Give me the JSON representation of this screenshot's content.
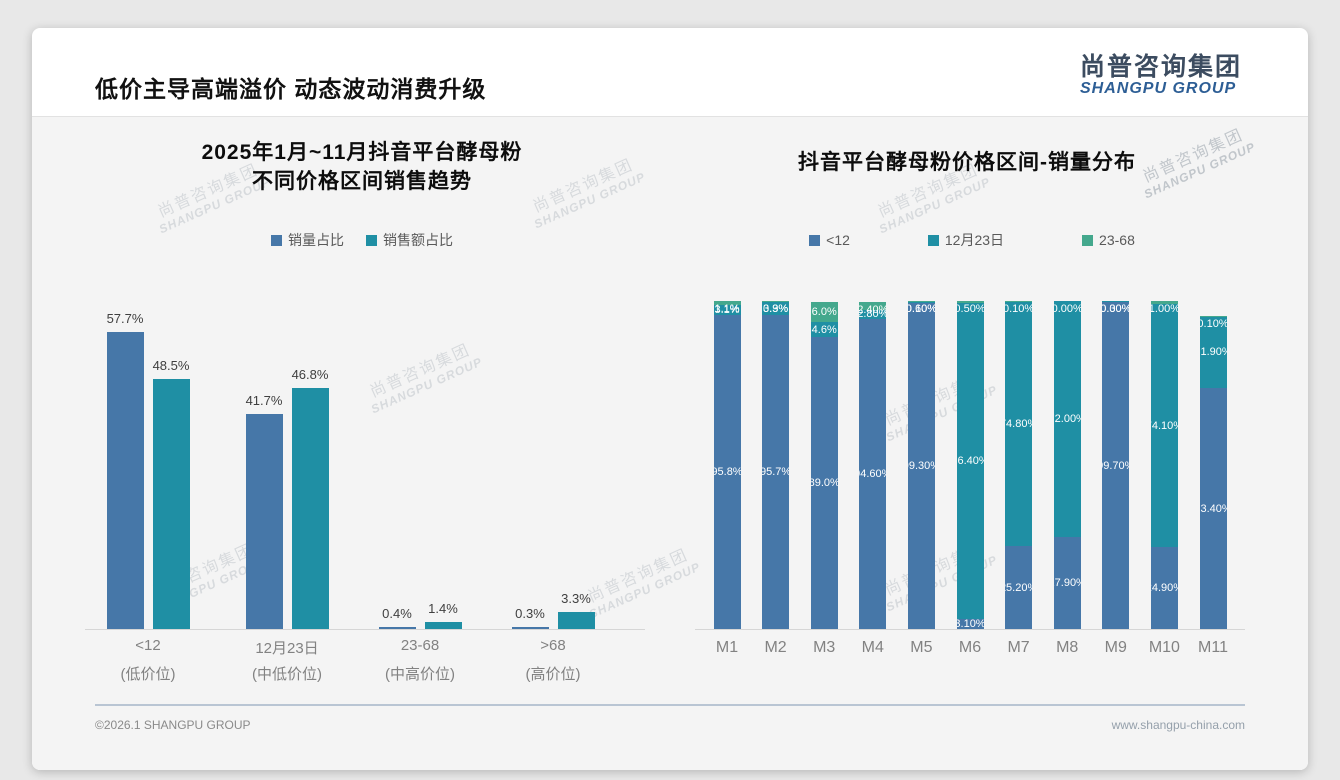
{
  "header": {
    "title": "低价主导高端溢价 动态波动消费升级",
    "logo_cn": "尚普咨询集团",
    "logo_en": "SHANGPU GROUP"
  },
  "watermark": {
    "line1": "尚普咨询集团",
    "line2": "SHANGPU GROUP"
  },
  "footer": {
    "copyright": "©2026.1 SHANGPU GROUP",
    "website": "www.shangpu-china.com"
  },
  "colors": {
    "blue": "#4677a8",
    "teal": "#1f8fa4",
    "green": "#44a88d",
    "axis": "#d6d6d6"
  },
  "chart_data": [
    {
      "type": "bar",
      "title_lines": [
        "2025年1月~11月抖音平台酵母粉",
        "不同价格区间销售趋势"
      ],
      "categories": [
        "<12",
        "12月23日",
        "23-68",
        ">68"
      ],
      "category_notes": [
        "(低价位)",
        "(中低价位)",
        "(中高价位)",
        "(高价位)"
      ],
      "series": [
        {
          "name": "销量占比",
          "color": "#4677a8",
          "values": [
            57.7,
            41.7,
            0.4,
            0.3
          ],
          "labels": [
            "57.7%",
            "41.7%",
            "0.4%",
            "0.3%"
          ]
        },
        {
          "name": "销售额占比",
          "color": "#1f8fa4",
          "values": [
            48.5,
            46.8,
            1.4,
            3.3
          ],
          "labels": [
            "48.5%",
            "46.8%",
            "1.4%",
            "3.3%"
          ]
        }
      ],
      "ylim": [
        0,
        60
      ],
      "grid": false,
      "legend_position": "top"
    },
    {
      "type": "bar",
      "stacked": true,
      "title": "抖音平台酵母粉价格区间-销量分布",
      "categories": [
        "M1",
        "M2",
        "M3",
        "M4",
        "M5",
        "M6",
        "M7",
        "M8",
        "M9",
        "M10",
        "M11"
      ],
      "series": [
        {
          "name": "<12",
          "color": "#4677a8",
          "values": [
            95.8,
            95.7,
            89.0,
            94.6,
            99.3,
            3.1,
            25.2,
            27.9,
            99.7,
            24.9,
            73.4
          ],
          "labels": [
            "95.8%",
            "95.7%",
            "89.0%",
            "94.60%",
            "99.30%",
            "3.10%",
            "25.20%",
            "27.90%",
            "99.70%",
            "24.90%",
            "73.40%"
          ]
        },
        {
          "name": "12月23日",
          "color": "#1f8fa4",
          "values": [
            3.1,
            3.9,
            4.6,
            2.8,
            0.6,
            96.4,
            74.8,
            72.0,
            0.3,
            74.1,
            21.9
          ],
          "labels": [
            "3.1%",
            "3.9%",
            "4.6%",
            "2.80%",
            "0.60%",
            "96.40%",
            "74.80%",
            "72.00%",
            "0.30%",
            "74.10%",
            "21.90%"
          ]
        },
        {
          "name": "23-68",
          "color": "#44a88d",
          "values": [
            1.1,
            0.3,
            6.0,
            2.4,
            0.1,
            0.5,
            0.1,
            0.0,
            0.0,
            1.0,
            0.1
          ],
          "labels": [
            "1.1%",
            "0.3%",
            "6.0%",
            "2.40%",
            "0.10%",
            "0.50%",
            "0.10%",
            "0.00%",
            "0.00%",
            "1.00%",
            "0.10%"
          ]
        }
      ],
      "ylim": [
        0,
        100
      ],
      "grid": false,
      "legend_position": "top"
    }
  ]
}
